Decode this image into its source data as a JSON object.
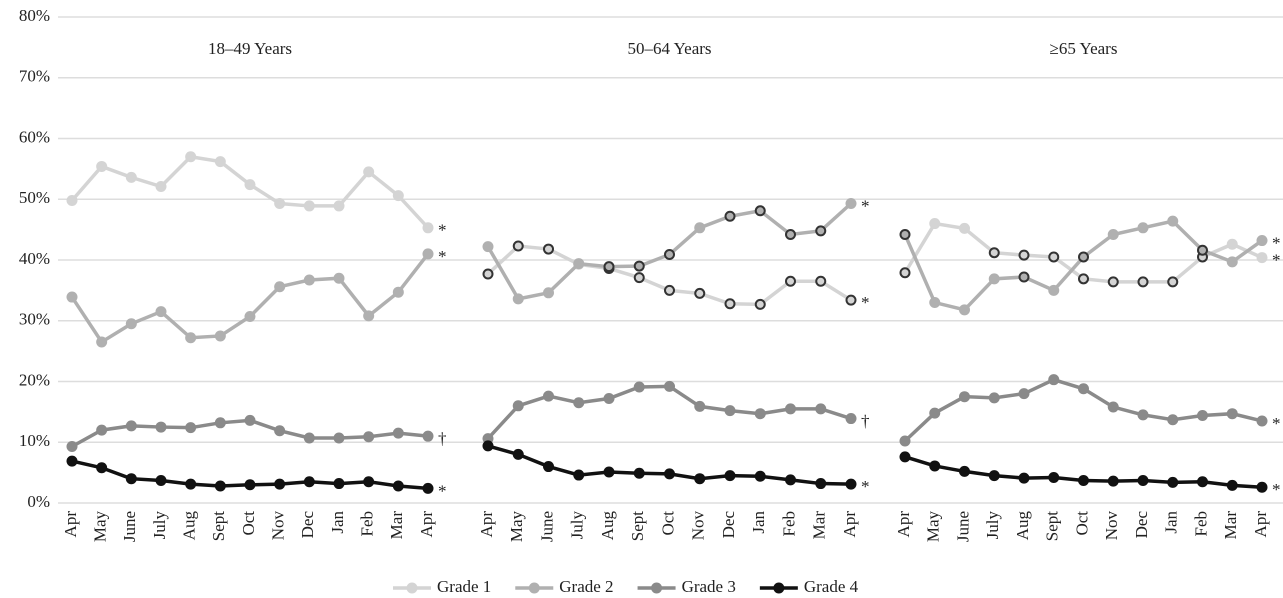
{
  "chart_data": {
    "type": "line",
    "ylim": [
      0,
      80
    ],
    "yticks": [
      {
        "value": 0,
        "label": "0%"
      },
      {
        "value": 10,
        "label": "10%"
      },
      {
        "value": 20,
        "label": "20%"
      },
      {
        "value": 30,
        "label": "30%"
      },
      {
        "value": 40,
        "label": "40%"
      },
      {
        "value": 50,
        "label": "50%"
      },
      {
        "value": 60,
        "label": "60%"
      },
      {
        "value": 70,
        "label": "70%"
      },
      {
        "value": 80,
        "label": "80%"
      }
    ],
    "grid": true,
    "categories": [
      "Apr",
      "May",
      "June",
      "July",
      "Aug",
      "Sept",
      "Oct",
      "Nov",
      "Dec",
      "Jan",
      "Feb",
      "Mar",
      "Apr"
    ],
    "series": [
      {
        "name": "Grade 1",
        "color": "#d4d4d4"
      },
      {
        "name": "Grade 2",
        "color": "#b0b0b0"
      },
      {
        "name": "Grade 3",
        "color": "#8a8a8a"
      },
      {
        "name": "Grade 4",
        "color": "#111111"
      }
    ],
    "panels": [
      {
        "title": "18–49 Years",
        "series": [
          {
            "values": [
              49.8,
              55.4,
              53.6,
              52.1,
              57.0,
              56.2,
              52.4,
              49.3,
              48.9,
              48.9,
              54.5,
              50.6,
              45.3
            ],
            "end_label": "*",
            "outlined": []
          },
          {
            "values": [
              33.9,
              26.5,
              29.5,
              31.5,
              27.2,
              27.5,
              30.7,
              35.6,
              36.7,
              37.0,
              30.8,
              34.7,
              41.0
            ],
            "end_label": "*",
            "outlined": []
          },
          {
            "values": [
              9.3,
              12.0,
              12.7,
              12.5,
              12.4,
              13.2,
              13.6,
              11.9,
              10.7,
              10.7,
              10.9,
              11.5,
              11.0
            ],
            "end_label": "†",
            "outlined": []
          },
          {
            "values": [
              6.9,
              5.8,
              4.0,
              3.7,
              3.1,
              2.8,
              3.0,
              3.1,
              3.5,
              3.2,
              3.5,
              2.8,
              2.4
            ],
            "end_label": "*",
            "outlined": []
          }
        ]
      },
      {
        "title": "50–64 Years",
        "series": [
          {
            "values": [
              37.7,
              42.3,
              41.8,
              39.3,
              38.6,
              37.1,
              35.0,
              34.5,
              32.8,
              32.7,
              36.5,
              36.5,
              33.4
            ],
            "end_label": "*",
            "outlined": [
              0,
              1,
              2,
              4,
              5,
              6,
              7,
              8,
              9,
              10,
              11,
              12
            ]
          },
          {
            "values": [
              42.2,
              33.6,
              34.6,
              39.4,
              38.9,
              39.0,
              40.9,
              45.3,
              47.2,
              48.1,
              44.2,
              44.8,
              49.3
            ],
            "end_label": "*",
            "outlined": [
              4,
              5,
              6,
              8,
              9,
              10,
              11
            ]
          },
          {
            "values": [
              10.6,
              16.0,
              17.6,
              16.5,
              17.2,
              19.1,
              19.2,
              15.9,
              15.2,
              14.7,
              15.5,
              15.5,
              13.9
            ],
            "end_label": "†",
            "outlined": []
          },
          {
            "values": [
              9.4,
              8.0,
              6.0,
              4.6,
              5.1,
              4.9,
              4.8,
              4.0,
              4.5,
              4.4,
              3.8,
              3.2,
              3.1
            ],
            "end_label": "*",
            "outlined": []
          }
        ]
      },
      {
        "title": "≥65 Years",
        "series": [
          {
            "values": [
              37.9,
              46.0,
              45.2,
              41.2,
              40.8,
              40.5,
              36.9,
              36.4,
              36.4,
              36.4,
              40.5,
              42.6,
              40.4
            ],
            "end_label": "*",
            "outlined": [
              0,
              3,
              4,
              5,
              6,
              7,
              8,
              9,
              10
            ]
          },
          {
            "values": [
              44.2,
              33.0,
              31.8,
              36.9,
              37.2,
              35.0,
              40.5,
              44.2,
              45.3,
              46.4,
              41.6,
              39.7,
              43.2
            ],
            "end_label": "*",
            "outlined": [
              0,
              4,
              6,
              10
            ]
          },
          {
            "values": [
              10.2,
              14.8,
              17.5,
              17.3,
              18.0,
              20.3,
              18.8,
              15.8,
              14.5,
              13.7,
              14.4,
              14.7,
              13.5
            ],
            "end_label": "*",
            "outlined": []
          },
          {
            "values": [
              7.6,
              6.1,
              5.2,
              4.5,
              4.1,
              4.2,
              3.7,
              3.6,
              3.7,
              3.4,
              3.5,
              2.9,
              2.6
            ],
            "end_label": "*",
            "outlined": []
          }
        ]
      }
    ]
  }
}
